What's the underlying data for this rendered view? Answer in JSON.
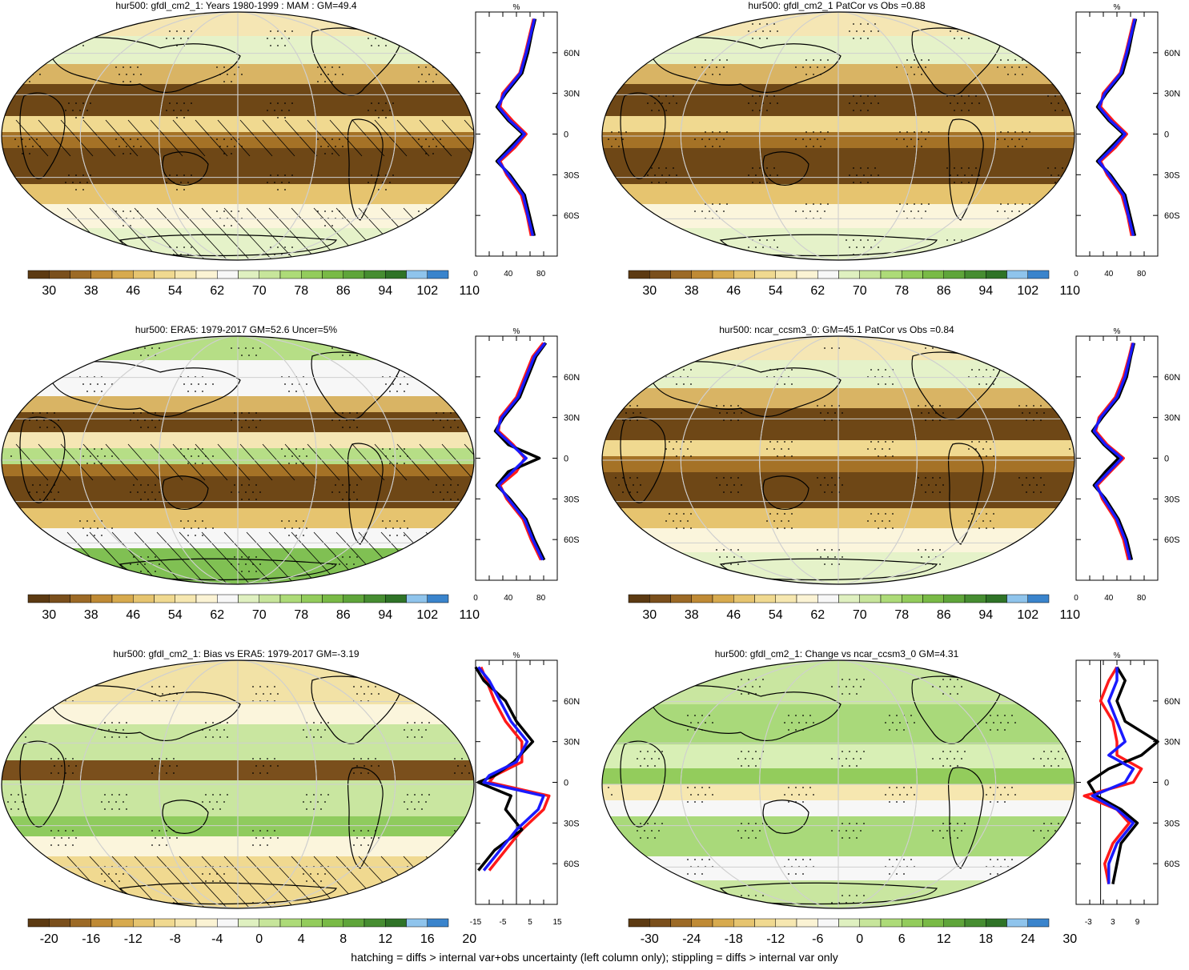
{
  "footer_note": "hatching = diffs > internal var+obs uncertainty (left column only); stippling = diffs > internal var only",
  "colors": {
    "ocean_land_lines": "#000000",
    "grid": "#cfcfcf",
    "profile_model": "#000000",
    "profile_obs": "#1a1aff",
    "profile_other": "#ff1a1a"
  },
  "abs_colorbar": [
    "#5c3a12",
    "#7a4f1c",
    "#9c6a26",
    "#bf8a35",
    "#d7aa4e",
    "#e6c46f",
    "#f0d990",
    "#f6e7b0",
    "#fbf3d4",
    "#f7f7f7",
    "#dff0c0",
    "#c7e59b",
    "#addb78",
    "#93cc5c",
    "#79ba46",
    "#5fa53a",
    "#468d31",
    "#2f7327",
    "#8fc4ec",
    "#3a84cc"
  ],
  "diff_colorbar": [
    "#5c3a12",
    "#7a4f1c",
    "#9c6a26",
    "#bf8a35",
    "#d7aa4e",
    "#e6c46f",
    "#f0d990",
    "#f6e7b0",
    "#fbf3d4",
    "#f7f7f7",
    "#dff0c0",
    "#c7e59b",
    "#addb78",
    "#93cc5c",
    "#79ba46",
    "#5fa53a",
    "#468d31",
    "#2f7327",
    "#8fc4ec",
    "#3a84cc"
  ],
  "panels": [
    {
      "title": "hur500: gfdl_cm2_1: Years 1980-1999 : MAM : GM=49.4",
      "bar_labels": [
        "30",
        "38",
        "46",
        "54",
        "62",
        "70",
        "78",
        "86",
        "94",
        "102",
        "110"
      ],
      "profile_unit": "%",
      "profile_xticks": [
        "0",
        "40",
        "80"
      ],
      "lat_labels": [
        "60N",
        "30N",
        "0",
        "30S",
        "60S"
      ],
      "chart_data": {
        "type": "line",
        "xlim": [
          0,
          100
        ],
        "ylim": [
          -90,
          90
        ],
        "lat": [
          -75,
          -60,
          -45,
          -30,
          -20,
          -10,
          0,
          10,
          20,
          30,
          45,
          60,
          75,
          85
        ],
        "series": [
          {
            "values": [
              70,
              64,
              58,
              40,
              28,
              45,
              60,
              42,
              28,
              35,
              55,
              62,
              68,
              72
            ]
          },
          {
            "values": [
              68,
              63,
              56,
              38,
              30,
              48,
              62,
              45,
              30,
              33,
              54,
              61,
              67,
              71
            ]
          },
          {
            "values": [
              72,
              66,
              60,
              42,
              26,
              42,
              58,
              40,
              26,
              37,
              57,
              64,
              69,
              73
            ]
          }
        ]
      }
    },
    {
      "title": "hur500: gfdl_cm2_1 PatCor vs Obs =0.88",
      "bar_labels": [
        "30",
        "38",
        "46",
        "54",
        "62",
        "70",
        "78",
        "86",
        "94",
        "102",
        "110"
      ],
      "profile_unit": "%",
      "profile_xticks": [
        "0",
        "40",
        "80"
      ],
      "lat_labels": [
        "60N",
        "30N",
        "0",
        "30S",
        "60S"
      ],
      "chart_data": {
        "type": "line",
        "xlim": [
          0,
          100
        ],
        "ylim": [
          -90,
          90
        ],
        "lat": [
          -75,
          -60,
          -45,
          -30,
          -20,
          -10,
          0,
          10,
          20,
          30,
          45,
          60,
          75,
          85
        ],
        "series": [
          {
            "values": [
              70,
              64,
              58,
              40,
              28,
              45,
              60,
              42,
              28,
              35,
              55,
              62,
              68,
              72
            ]
          },
          {
            "values": [
              68,
              63,
              56,
              38,
              30,
              48,
              62,
              45,
              30,
              33,
              54,
              61,
              67,
              71
            ]
          },
          {
            "values": [
              72,
              66,
              60,
              42,
              26,
              42,
              58,
              40,
              26,
              37,
              57,
              64,
              69,
              73
            ]
          }
        ]
      }
    },
    {
      "title": "hur500: ERA5: 1979-2017 GM=52.6 Uncer=5%",
      "bar_labels": [
        "30",
        "38",
        "46",
        "54",
        "62",
        "70",
        "78",
        "86",
        "94",
        "102",
        "110"
      ],
      "profile_unit": "%",
      "profile_xticks": [
        "0",
        "40",
        "80"
      ],
      "lat_labels": [
        "60N",
        "30N",
        "0",
        "30S",
        "60S"
      ],
      "chart_data": {
        "type": "line",
        "xlim": [
          0,
          100
        ],
        "ylim": [
          -90,
          90
        ],
        "lat": [
          -75,
          -60,
          -45,
          -30,
          -20,
          -10,
          0,
          10,
          20,
          30,
          45,
          60,
          75,
          85
        ],
        "series": [
          {
            "values": [
              82,
              70,
              60,
              40,
              28,
              45,
              62,
              44,
              26,
              32,
              52,
              62,
              72,
              85
            ]
          },
          {
            "values": [
              80,
              68,
              58,
              38,
              30,
              50,
              60,
              46,
              28,
              30,
              50,
              60,
              70,
              83
            ]
          },
          {
            "values": [
              84,
              72,
              62,
              42,
              26,
              40,
              78,
              40,
              24,
              34,
              54,
              64,
              74,
              86
            ]
          }
        ]
      }
    },
    {
      "title": "hur500: ncar_ccsm3_0: GM=45.1 PatCor vs Obs =0.84",
      "bar_labels": [
        "30",
        "38",
        "46",
        "54",
        "62",
        "70",
        "78",
        "86",
        "94",
        "102",
        "110"
      ],
      "profile_unit": "%",
      "profile_xticks": [
        "0",
        "40",
        "80"
      ],
      "lat_labels": [
        "60N",
        "30N",
        "0",
        "30S",
        "60S"
      ],
      "chart_data": {
        "type": "line",
        "xlim": [
          0,
          100
        ],
        "ylim": [
          -90,
          90
        ],
        "lat": [
          -75,
          -60,
          -45,
          -30,
          -20,
          -10,
          0,
          10,
          20,
          30,
          45,
          60,
          75,
          85
        ],
        "series": [
          {
            "values": [
              66,
              60,
              50,
              34,
              24,
              40,
              56,
              36,
              22,
              30,
              50,
              60,
              66,
              70
            ]
          },
          {
            "values": [
              64,
              58,
              48,
              32,
              26,
              42,
              58,
              38,
              24,
              28,
              48,
              58,
              65,
              69
            ]
          },
          {
            "values": [
              68,
              62,
              52,
              36,
              22,
              36,
              52,
              34,
              20,
              32,
              52,
              62,
              67,
              71
            ]
          }
        ]
      }
    },
    {
      "title": "hur500: gfdl_cm2_1: Bias vs ERA5: 1979-2017 GM=-3.19",
      "bar_labels": [
        "-20",
        "-16",
        "-12",
        "-8",
        "-4",
        "0",
        "4",
        "8",
        "12",
        "16",
        "20"
      ],
      "profile_unit": "%",
      "profile_xticks": [
        "-15",
        "-5",
        "5",
        "15"
      ],
      "lat_labels": [
        "60N",
        "30N",
        "0",
        "30S",
        "60S"
      ],
      "chart_data": {
        "type": "line",
        "xlim": [
          -15,
          15
        ],
        "ylim": [
          -90,
          90
        ],
        "lat": [
          -65,
          -50,
          -35,
          -20,
          -10,
          0,
          5,
          15,
          30,
          45,
          60,
          75,
          85
        ],
        "series": [
          {
            "values": [
              -12,
              -6,
              0,
              8,
              10,
              -12,
              -10,
              0,
              4,
              -2,
              -6,
              -10,
              -14
            ]
          },
          {
            "values": [
              -10,
              -4,
              2,
              10,
              12,
              -10,
              -8,
              2,
              2,
              -4,
              -8,
              -11,
              -13
            ]
          },
          {
            "values": [
              -14,
              -8,
              2,
              -4,
              -2,
              -14,
              -8,
              -1,
              6,
              0,
              -4,
              -12,
              -15
            ]
          }
        ]
      }
    },
    {
      "title": "hur500: gfdl_cm2_1: Change vs ncar_ccsm3_0 GM=4.31",
      "bar_labels": [
        "-30",
        "-24",
        "-18",
        "-12",
        "-6",
        "0",
        "6",
        "12",
        "18",
        "24",
        "30"
      ],
      "profile_unit": "%",
      "profile_xticks": [
        "-3",
        "3",
        "9"
      ],
      "lat_labels": [
        "60N",
        "30N",
        "0",
        "30S",
        "60S"
      ],
      "chart_data": {
        "type": "line",
        "xlim": [
          -6,
          14
        ],
        "ylim": [
          -90,
          90
        ],
        "lat": [
          -75,
          -60,
          -45,
          -30,
          -20,
          -10,
          0,
          10,
          20,
          30,
          45,
          60,
          75,
          85
        ],
        "series": [
          {
            "values": [
              2,
              2,
              4,
              8,
              4,
              -2,
              6,
              8,
              2,
              6,
              4,
              2,
              4,
              4
            ]
          },
          {
            "values": [
              2,
              1,
              3,
              7,
              4,
              -4,
              8,
              10,
              4,
              4,
              3,
              0,
              2,
              4
            ]
          },
          {
            "values": [
              3,
              4,
              5,
              9,
              5,
              -1,
              -3,
              2,
              10,
              14,
              6,
              4,
              6,
              4
            ]
          }
        ]
      }
    }
  ]
}
